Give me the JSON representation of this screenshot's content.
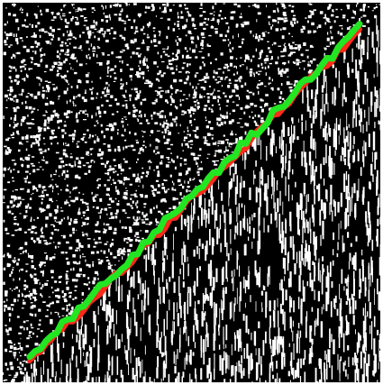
{
  "image": {
    "description_tags": [
      "binary-noise-texture",
      "detected-edge-overlay"
    ],
    "colors": {
      "background": "#000000",
      "noise": "#ffffff",
      "reference_edge": "#ff2a1a",
      "detected_edge": "#22e622",
      "frame": "#ffffff"
    },
    "regions": [
      {
        "name": "upper-left-region",
        "texture": "isotropic-speckle"
      },
      {
        "name": "lower-right-region",
        "texture": "vertical-streaks"
      }
    ],
    "overlays": [
      {
        "name": "reference-edge-line",
        "color_key": "reference_edge"
      },
      {
        "name": "detected-edge-line",
        "color_key": "detected_edge"
      }
    ]
  }
}
